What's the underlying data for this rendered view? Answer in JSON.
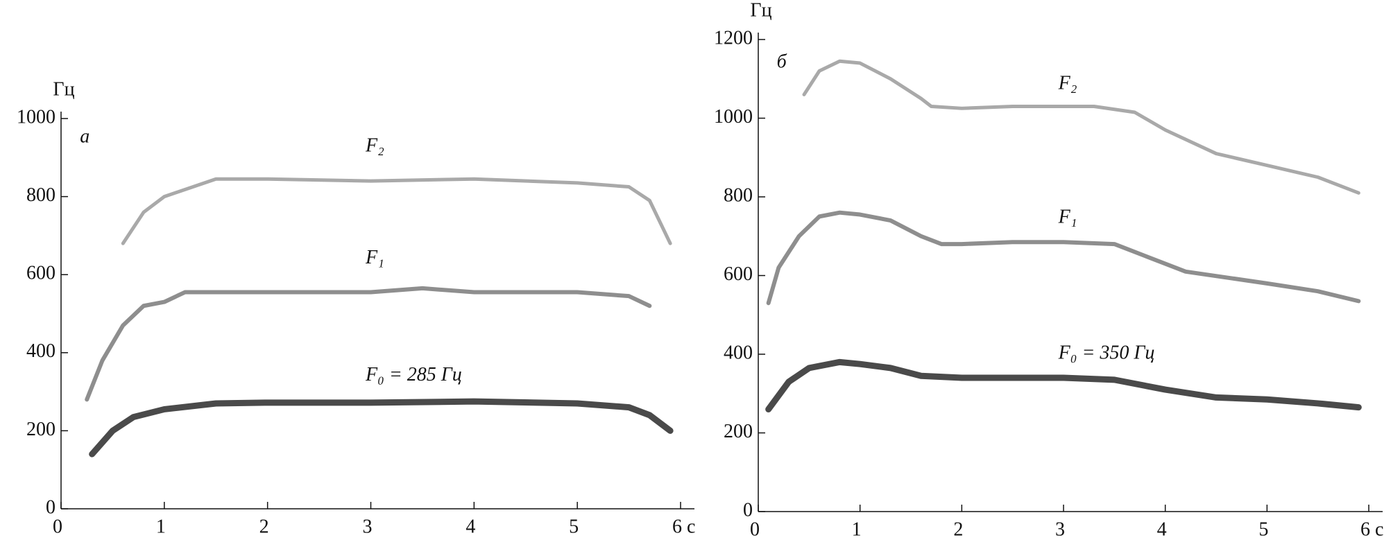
{
  "chart_data": [
    {
      "type": "line",
      "panel_label": "а",
      "y_label": "Гц",
      "xlim": [
        0,
        6
      ],
      "xticks": [
        0,
        1,
        2,
        3,
        4,
        5,
        {
          "value": 6,
          "label": "6 с"
        }
      ],
      "ylim": [
        0,
        1000
      ],
      "yticks": [
        0,
        200,
        400,
        600,
        800,
        1000
      ],
      "series": [
        {
          "name": "F₂",
          "color": "#9a9a9a",
          "x": [
            0.6,
            0.8,
            1.0,
            1.5,
            2,
            3,
            4,
            5,
            5.5,
            5.7,
            5.9
          ],
          "values": [
            680,
            760,
            800,
            845,
            845,
            840,
            845,
            835,
            825,
            790,
            680
          ]
        },
        {
          "name": "F₁",
          "color": "#7a7a7a",
          "x": [
            0.25,
            0.4,
            0.6,
            0.8,
            1.0,
            1.2,
            2,
            3,
            3.5,
            4,
            5,
            5.5,
            5.7
          ],
          "values": [
            280,
            380,
            470,
            520,
            530,
            555,
            555,
            555,
            565,
            555,
            555,
            545,
            520
          ]
        },
        {
          "name": "F₀ = 285 Гц",
          "color": "#2a2a2a",
          "x": [
            0.3,
            0.5,
            0.7,
            1.0,
            1.5,
            2,
            3,
            4,
            5,
            5.5,
            5.7,
            5.9
          ],
          "values": [
            140,
            200,
            235,
            255,
            270,
            272,
            272,
            275,
            270,
            260,
            240,
            200
          ]
        }
      ]
    },
    {
      "type": "line",
      "panel_label": "б",
      "y_label": "Гц",
      "xlim": [
        0,
        6
      ],
      "xticks": [
        0,
        1,
        2,
        3,
        4,
        5,
        {
          "value": 6,
          "label": "6 с"
        }
      ],
      "ylim": [
        0,
        1200
      ],
      "yticks": [
        0,
        200,
        400,
        600,
        800,
        1000,
        1200
      ],
      "series": [
        {
          "name": "F₂",
          "color": "#9a9a9a",
          "x": [
            0.45,
            0.6,
            0.8,
            1.0,
            1.3,
            1.6,
            1.7,
            2,
            2.5,
            3,
            3.3,
            3.7,
            4,
            4.5,
            5,
            5.5,
            5.9
          ],
          "values": [
            1060,
            1120,
            1145,
            1140,
            1100,
            1050,
            1030,
            1025,
            1030,
            1030,
            1030,
            1015,
            970,
            910,
            880,
            850,
            810
          ]
        },
        {
          "name": "F₁",
          "color": "#7a7a7a",
          "x": [
            0.1,
            0.2,
            0.4,
            0.6,
            0.8,
            1.0,
            1.3,
            1.6,
            1.8,
            2,
            2.5,
            3,
            3.5,
            3.8,
            4.2,
            5,
            5.5,
            5.9
          ],
          "values": [
            530,
            620,
            700,
            750,
            760,
            755,
            740,
            700,
            680,
            680,
            685,
            685,
            680,
            650,
            610,
            580,
            560,
            535
          ]
        },
        {
          "name": "F₀ = 350 Гц",
          "color": "#2a2a2a",
          "x": [
            0.1,
            0.3,
            0.5,
            0.8,
            1.0,
            1.3,
            1.6,
            2,
            3,
            3.5,
            4,
            4.5,
            5,
            5.5,
            5.9
          ],
          "values": [
            260,
            330,
            365,
            380,
            375,
            365,
            345,
            340,
            340,
            335,
            310,
            290,
            285,
            275,
            265
          ]
        }
      ]
    }
  ]
}
